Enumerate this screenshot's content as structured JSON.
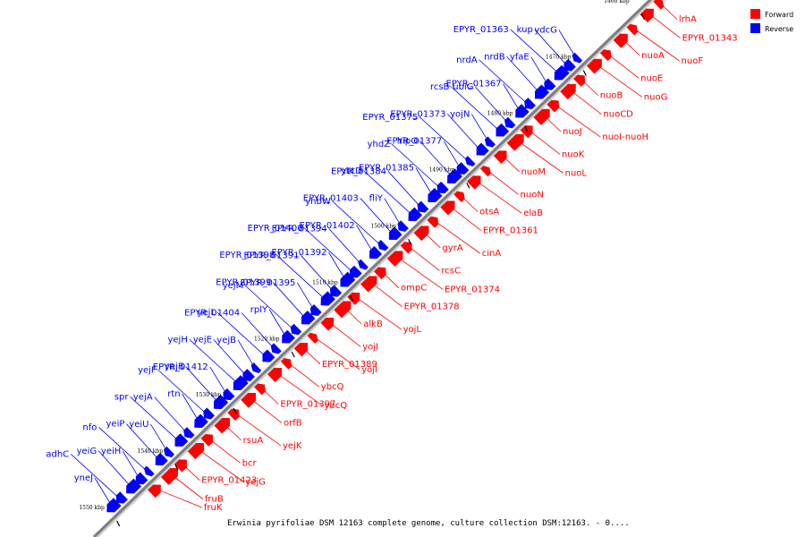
{
  "legend": [
    {
      "label": "Forward",
      "color": "#ff0000"
    },
    {
      "label": "Reverse",
      "color": "#0000ff"
    }
  ],
  "caption": "Erwinia pyrifoliae DSM 12163 complete genome, culture collection DSM:12163. - 0....",
  "colors": {
    "forward": "#ff0000",
    "reverse": "#0000ff",
    "backbone": "#7f7f7f",
    "tick": "#000000"
  },
  "scale_ticks": [
    "1460 kbp",
    "1470 kbp",
    "1480 kbp",
    "1490 kbp",
    "1500 kbp",
    "1510 kbp",
    "1520 kbp",
    "1530 kbp",
    "1540 kbp",
    "1550 kbp"
  ],
  "reverse_genes": [
    "ydcG",
    "kup",
    "EPYR_01363",
    "yfaE",
    "nrdB",
    "nrdA",
    "EPYR_01367",
    "ubiG",
    "rcsB",
    "yojN",
    "EPYR_01373",
    "EPYR_01375",
    "EPYR_01377",
    "hipO",
    "yhdZ",
    "EPYR_01385",
    "EPYR_01384",
    "ybtD",
    "fliY",
    "EPYR_01403",
    "yhbW",
    "EPYR_01402",
    "EPYR_01394",
    "EPYR_01400",
    "EPYR_01392",
    "EPYR_01391",
    "EPYR_01398",
    "EPYR_01395",
    "EPYR_01399",
    "yejM",
    "rplY",
    "EPYR_01404",
    "yejL",
    "yejB",
    "yejE",
    "yejH",
    "EPYR_01412",
    "yejB",
    "yejF",
    "rtn",
    "yejA",
    "spr",
    "yeiU",
    "yeiP",
    "nfo",
    "yeiH",
    "yeiG",
    "adhC",
    "yneJ"
  ],
  "forward_genes": [
    "lrhA",
    "EPYR_01343",
    "nuoF",
    "nuoA",
    "nuoE",
    "nuoG",
    "nuoB",
    "nuoCD",
    "nuoI-nuoH",
    "nuoJ",
    "nuoK",
    "nuoL",
    "nuoM",
    "nuoN",
    "elaB",
    "otsA",
    "EPYR_01361",
    "cinA",
    "gyrA",
    "rcsC",
    "EPYR_01374",
    "ompC",
    "EPYR_01378",
    "yojL",
    "alkB",
    "yojI",
    "yojI",
    "EPYR_01389",
    "ybcQ",
    "ybcQ",
    "EPYR_01397",
    "orfB",
    "yejK",
    "rsuA",
    "bcr",
    "yejG",
    "EPYR_01423",
    "fruB",
    "fruK"
  ]
}
